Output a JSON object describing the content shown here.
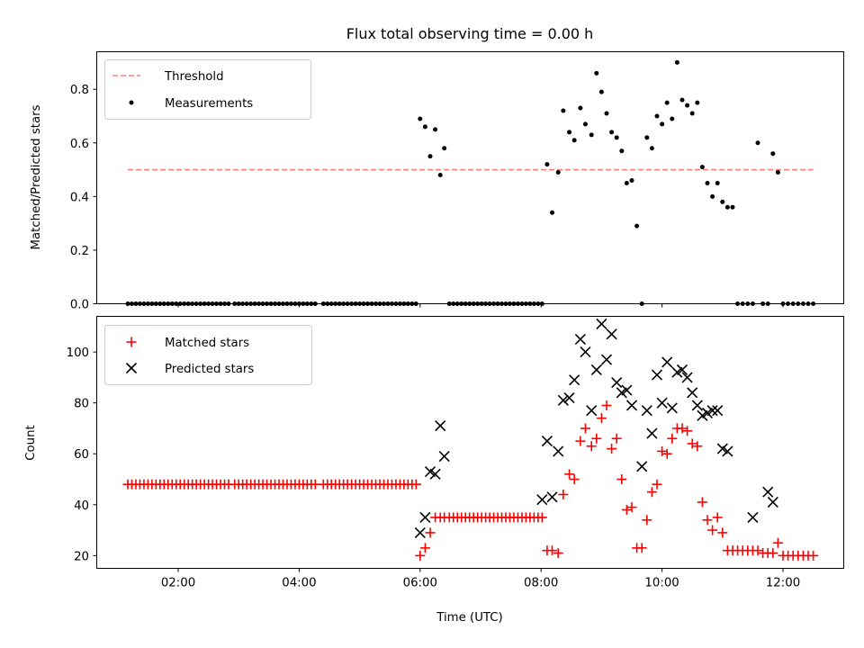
{
  "chart_data": [
    {
      "type": "scatter",
      "panel": "top",
      "title": "Flux total observing time = 0.00 h",
      "ylabel": "Matched/Predicted stars",
      "xlabel": "",
      "ylim": [
        0,
        0.94
      ],
      "yticks": [
        0.0,
        0.2,
        0.4,
        0.6,
        0.8
      ],
      "ytick_labels": [
        "0.0",
        "0.2",
        "0.4",
        "0.6",
        "0.8"
      ],
      "xticks": [
        "02:00",
        "04:00",
        "06:00",
        "08:00",
        "10:00",
        "12:00"
      ],
      "legend": {
        "position": "top-left",
        "entries": [
          "Threshold",
          "Measurements"
        ]
      },
      "series": [
        {
          "name": "Threshold",
          "style": "dashed",
          "color": "#ff7f7f",
          "x": [
            "01:10",
            "12:30"
          ],
          "y": [
            0.5,
            0.5
          ]
        },
        {
          "name": "Measurements",
          "style": "dot",
          "color": "#000000",
          "x": [
            "01:10",
            "01:14",
            "01:18",
            "01:22",
            "01:26",
            "01:30",
            "01:34",
            "01:38",
            "01:42",
            "01:46",
            "01:50",
            "01:54",
            "01:58",
            "02:02",
            "02:06",
            "02:10",
            "02:14",
            "02:18",
            "02:22",
            "02:26",
            "02:30",
            "02:34",
            "02:38",
            "02:42",
            "02:46",
            "02:50",
            "02:56",
            "03:00",
            "03:04",
            "03:08",
            "03:12",
            "03:16",
            "03:20",
            "03:24",
            "03:28",
            "03:32",
            "03:36",
            "03:40",
            "03:44",
            "03:48",
            "03:52",
            "03:56",
            "04:00",
            "04:04",
            "04:08",
            "04:12",
            "04:16",
            "04:24",
            "04:28",
            "04:32",
            "04:36",
            "04:40",
            "04:44",
            "04:48",
            "04:52",
            "04:56",
            "05:00",
            "05:04",
            "05:08",
            "05:12",
            "05:16",
            "05:20",
            "05:24",
            "05:28",
            "05:32",
            "05:36",
            "05:40",
            "05:44",
            "05:48",
            "05:52",
            "05:56",
            "06:00",
            "06:05",
            "06:10",
            "06:15",
            "06:20",
            "06:24",
            "06:29",
            "06:33",
            "06:37",
            "06:41",
            "06:45",
            "06:49",
            "06:53",
            "06:57",
            "07:01",
            "07:05",
            "07:09",
            "07:13",
            "07:17",
            "07:21",
            "07:25",
            "07:29",
            "07:33",
            "07:37",
            "07:41",
            "07:45",
            "07:49",
            "07:53",
            "07:57",
            "08:01",
            "08:06",
            "08:11",
            "08:17",
            "08:22",
            "08:28",
            "08:33",
            "08:39",
            "08:44",
            "08:50",
            "08:55",
            "09:00",
            "09:05",
            "09:10",
            "09:15",
            "09:20",
            "09:25",
            "09:30",
            "09:35",
            "09:40",
            "09:45",
            "09:50",
            "09:55",
            "10:00",
            "10:05",
            "10:10",
            "10:15",
            "10:20",
            "10:25",
            "10:30",
            "10:35",
            "10:40",
            "10:45",
            "10:50",
            "10:55",
            "11:00",
            "11:05",
            "11:10",
            "11:15",
            "11:20",
            "11:25",
            "11:30",
            "11:35",
            "11:40",
            "11:45",
            "11:50",
            "11:55",
            "12:00",
            "12:05",
            "12:10",
            "12:15",
            "12:20",
            "12:25",
            "12:30"
          ],
          "y": [
            0,
            0,
            0,
            0,
            0,
            0,
            0,
            0,
            0,
            0,
            0,
            0,
            0,
            0,
            0,
            0,
            0,
            0,
            0,
            0,
            0,
            0,
            0,
            0,
            0,
            0,
            0,
            0,
            0,
            0,
            0,
            0,
            0,
            0,
            0,
            0,
            0,
            0,
            0,
            0,
            0,
            0,
            0,
            0,
            0,
            0,
            0,
            0,
            0,
            0,
            0,
            0,
            0,
            0,
            0,
            0,
            0,
            0,
            0,
            0,
            0,
            0,
            0,
            0,
            0,
            0,
            0,
            0,
            0,
            0,
            0,
            0.69,
            0.66,
            0.55,
            0.65,
            0.48,
            0.58,
            0,
            0,
            0,
            0,
            0,
            0,
            0,
            0,
            0,
            0,
            0,
            0,
            0,
            0,
            0,
            0,
            0,
            0,
            0,
            0,
            0,
            0,
            0,
            0,
            0.52,
            0.34,
            0.49,
            0.72,
            0.64,
            0.61,
            0.73,
            0.67,
            0.63,
            0.86,
            0.79,
            0.71,
            0.64,
            0.62,
            0.57,
            0.45,
            0.46,
            0.29,
            0,
            0.62,
            0.58,
            0.7,
            0.67,
            0.75,
            0.69,
            0.9,
            0.76,
            0.74,
            0.71,
            0.75,
            0.51,
            0.45,
            0.4,
            0.45,
            0.38,
            0.36,
            0.36,
            0,
            0,
            0,
            0,
            0.6,
            0,
            0,
            0.56,
            0.49,
            0,
            0,
            0,
            0,
            0,
            0,
            0
          ]
        }
      ]
    },
    {
      "type": "scatter",
      "panel": "bottom",
      "title": "",
      "xlabel": "Time (UTC)",
      "ylabel": "Count",
      "ylim": [
        15,
        114
      ],
      "yticks": [
        20,
        40,
        60,
        80,
        100
      ],
      "ytick_labels": [
        "20",
        "40",
        "60",
        "80",
        "100"
      ],
      "xticks": [
        "02:00",
        "04:00",
        "06:00",
        "08:00",
        "10:00",
        "12:00"
      ],
      "legend": {
        "position": "top-left",
        "entries": [
          "Matched stars",
          "Predicted stars"
        ]
      },
      "series": [
        {
          "name": "Matched stars",
          "marker": "+",
          "color": "#ff0000",
          "x": [
            "01:10",
            "01:14",
            "01:18",
            "01:22",
            "01:26",
            "01:30",
            "01:34",
            "01:38",
            "01:42",
            "01:46",
            "01:50",
            "01:54",
            "01:58",
            "02:02",
            "02:06",
            "02:10",
            "02:14",
            "02:18",
            "02:22",
            "02:26",
            "02:30",
            "02:34",
            "02:38",
            "02:42",
            "02:46",
            "02:50",
            "02:56",
            "03:00",
            "03:04",
            "03:08",
            "03:12",
            "03:16",
            "03:20",
            "03:24",
            "03:28",
            "03:32",
            "03:36",
            "03:40",
            "03:44",
            "03:48",
            "03:52",
            "03:56",
            "04:00",
            "04:04",
            "04:08",
            "04:12",
            "04:16",
            "04:24",
            "04:28",
            "04:32",
            "04:36",
            "04:40",
            "04:44",
            "04:48",
            "04:52",
            "04:56",
            "05:00",
            "05:04",
            "05:08",
            "05:12",
            "05:16",
            "05:20",
            "05:24",
            "05:28",
            "05:32",
            "05:36",
            "05:40",
            "05:44",
            "05:48",
            "05:52",
            "05:56",
            "06:00",
            "06:05",
            "06:10",
            "06:15",
            "06:20",
            "06:24",
            "06:29",
            "06:33",
            "06:37",
            "06:41",
            "06:45",
            "06:49",
            "06:53",
            "06:57",
            "07:01",
            "07:05",
            "07:09",
            "07:13",
            "07:17",
            "07:21",
            "07:25",
            "07:29",
            "07:33",
            "07:37",
            "07:41",
            "07:45",
            "07:49",
            "07:53",
            "07:57",
            "08:01",
            "08:06",
            "08:11",
            "08:17",
            "08:22",
            "08:28",
            "08:33",
            "08:39",
            "08:44",
            "08:50",
            "08:55",
            "09:00",
            "09:05",
            "09:10",
            "09:15",
            "09:20",
            "09:25",
            "09:30",
            "09:35",
            "09:40",
            "09:45",
            "09:50",
            "09:55",
            "10:00",
            "10:05",
            "10:10",
            "10:15",
            "10:20",
            "10:25",
            "10:30",
            "10:35",
            "10:40",
            "10:45",
            "10:50",
            "10:55",
            "11:00",
            "11:05",
            "11:10",
            "11:15",
            "11:20",
            "11:25",
            "11:30",
            "11:35",
            "11:40",
            "11:45",
            "11:50",
            "11:55",
            "12:00",
            "12:05",
            "12:10",
            "12:15",
            "12:20",
            "12:25",
            "12:30"
          ],
          "y": [
            48,
            48,
            48,
            48,
            48,
            48,
            48,
            48,
            48,
            48,
            48,
            48,
            48,
            48,
            48,
            48,
            48,
            48,
            48,
            48,
            48,
            48,
            48,
            48,
            48,
            48,
            48,
            48,
            48,
            48,
            48,
            48,
            48,
            48,
            48,
            48,
            48,
            48,
            48,
            48,
            48,
            48,
            48,
            48,
            48,
            48,
            48,
            48,
            48,
            48,
            48,
            48,
            48,
            48,
            48,
            48,
            48,
            48,
            48,
            48,
            48,
            48,
            48,
            48,
            48,
            48,
            48,
            48,
            48,
            48,
            48,
            20,
            23,
            29,
            35,
            35,
            35,
            35,
            35,
            35,
            35,
            35,
            35,
            35,
            35,
            35,
            35,
            35,
            35,
            35,
            35,
            35,
            35,
            35,
            35,
            35,
            35,
            35,
            35,
            35,
            35,
            22,
            22,
            21,
            44,
            52,
            50,
            65,
            70,
            63,
            66,
            74,
            79,
            62,
            66,
            50,
            38,
            39,
            23,
            23,
            34,
            45,
            48,
            61,
            60,
            66,
            70,
            70,
            69,
            64,
            63,
            41,
            34,
            30,
            35,
            29,
            22,
            22,
            22,
            22,
            22,
            22,
            22,
            21,
            21,
            21,
            25,
            20,
            20,
            20,
            20,
            20,
            20,
            20
          ]
        },
        {
          "name": "Predicted stars",
          "marker": "x",
          "color": "#000000",
          "x": [
            "06:00",
            "06:05",
            "06:10",
            "06:15",
            "06:20",
            "06:24",
            "08:01",
            "08:06",
            "08:11",
            "08:17",
            "08:22",
            "08:28",
            "08:33",
            "08:39",
            "08:44",
            "08:50",
            "08:55",
            "09:00",
            "09:05",
            "09:10",
            "09:15",
            "09:20",
            "09:25",
            "09:30",
            "09:40",
            "09:45",
            "09:50",
            "09:55",
            "10:00",
            "10:05",
            "10:10",
            "10:15",
            "10:20",
            "10:25",
            "10:30",
            "10:35",
            "10:40",
            "10:45",
            "10:50",
            "10:55",
            "11:00",
            "11:05",
            "11:30",
            "11:45",
            "11:50"
          ],
          "y": [
            29,
            35,
            53,
            52,
            71,
            59,
            42,
            65,
            43,
            61,
            81,
            82,
            89,
            105,
            100,
            77,
            93,
            111,
            97,
            107,
            88,
            84,
            85,
            79,
            55,
            77,
            68,
            91,
            80,
            96,
            78,
            92,
            93,
            90,
            84,
            79,
            75,
            76,
            77,
            77,
            62,
            61,
            35,
            45,
            41
          ]
        }
      ]
    }
  ]
}
